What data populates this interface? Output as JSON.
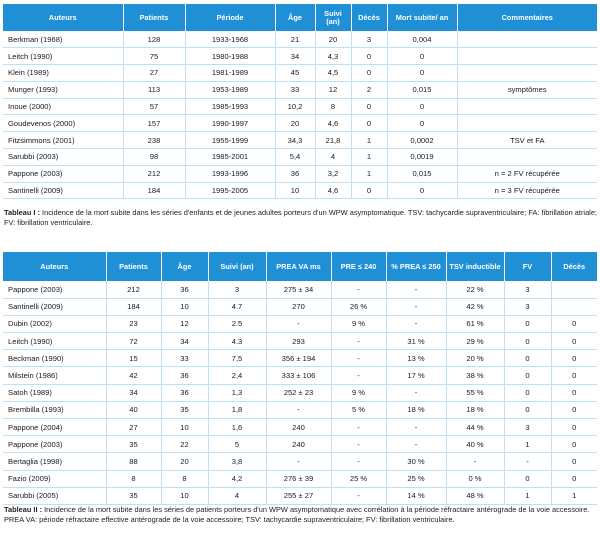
{
  "table1": {
    "headers": [
      "Auteurs",
      "Patients",
      "Période",
      "Âge",
      "Suivi (an)",
      "Décès",
      "Mort subite/ an",
      "Commentaires"
    ],
    "rows": [
      [
        "Berkman (1968)",
        "128",
        "1933-1968",
        "21",
        "20",
        "3",
        "0,004",
        ""
      ],
      [
        "Leitch (1990)",
        "75",
        "1980-1988",
        "34",
        "4,3",
        "0",
        "0",
        ""
      ],
      [
        "Klein (1989)",
        "27",
        "1981-1989",
        "45",
        "4,5",
        "0",
        "0",
        ""
      ],
      [
        "Munger (1993)",
        "113",
        "1953-1989",
        "33",
        "12",
        "2",
        "0,015",
        "symptômes"
      ],
      [
        "Inoue (2000)",
        "57",
        "1985-1993",
        "10,2",
        "8",
        "0",
        "0",
        ""
      ],
      [
        "Goudevenos (2000)",
        "157",
        "1990-1997",
        "20",
        "4,6",
        "0",
        "0",
        ""
      ],
      [
        "Fitzsimmons (2001)",
        "238",
        "1955-1999",
        "34,3",
        "21,8",
        "1",
        "0,0002",
        "TSV et FA"
      ],
      [
        "Sarubbi (2003)",
        "98",
        "1985-2001",
        "5,4",
        "4",
        "1",
        "0,0019",
        ""
      ],
      [
        "Pappone (2003)",
        "212",
        "1993-1996",
        "36",
        "3,2",
        "1",
        "0,015",
        "n = 2 FV récupérée"
      ],
      [
        "Santinelli (2009)",
        "184",
        "1995-2005",
        "10",
        "4,6",
        "0",
        "0",
        "n = 3 FV récupérée"
      ]
    ]
  },
  "caption1": {
    "label": "Tableau I :",
    "text": " Incidence de la mort subite dans les séries d'enfants et de jeunes adultes porteurs d'un WPW asymptomatique. TSV: tachycardie supraventriculaire; FA: fibrillation atriale; FV: fibrillation ventriculaire."
  },
  "table2": {
    "headers": [
      "Auteurs",
      "Patients",
      "Âge",
      "Suivi (an)",
      "PREA VA ms",
      "PRE ≤ 240",
      "% PREA ≤ 250",
      "TSV inductible",
      "FV",
      "Décès"
    ],
    "rows": [
      [
        "Pappone (2003)",
        "212",
        "36",
        "3",
        "275 ± 34",
        "-",
        "-",
        "22 %",
        "3",
        ""
      ],
      [
        "Santinelli (2009)",
        "184",
        "10",
        "4.7",
        "270",
        "26 %",
        "-",
        "42 %",
        "3",
        ""
      ],
      [
        "Dubin (2002)",
        "23",
        "12",
        "2.5",
        "-",
        "9 %",
        "-",
        "61 %",
        "0",
        "0"
      ],
      [
        "Leitch (1990)",
        "72",
        "34",
        "4.3",
        "293",
        "-",
        "31 %",
        "29 %",
        "0",
        "0"
      ],
      [
        "Beckman (1990)",
        "15",
        "33",
        "7,5",
        "356 ± 194",
        "-",
        "13 %",
        "20 %",
        "0",
        "0"
      ],
      [
        "Milstein (1986)",
        "42",
        "36",
        "2,4",
        "333 ± 106",
        "-",
        "17 %",
        "38 %",
        "0",
        "0"
      ],
      [
        "Satoh (1989)",
        "34",
        "36",
        "1,3",
        "252 ± 23",
        "9 %",
        "-",
        "55 %",
        "0",
        "0"
      ],
      [
        "Brembilla (1993)",
        "40",
        "35",
        "1,8",
        "-",
        "5 %",
        "18 %",
        "18 %",
        "0",
        "0"
      ],
      [
        "Pappone (2004)",
        "27",
        "10",
        "1,6",
        "240",
        "-",
        "-",
        "44 %",
        "3",
        "0"
      ],
      [
        "Pappone (2003)",
        "35",
        "22",
        "5",
        "240",
        "-",
        "-",
        "40 %",
        "1",
        "0"
      ],
      [
        "Bertaglia (1998)",
        "88",
        "20",
        "3,8",
        "-",
        "-",
        "30 %",
        "-",
        "-",
        "0"
      ],
      [
        "Fazio (2009)",
        "8",
        "8",
        "4,2",
        "276 ± 39",
        "25 %",
        "25 %",
        "0 %",
        "0",
        "0"
      ],
      [
        "Sarubbi (2005)",
        "35",
        "10",
        "4",
        "255 ± 27",
        "-",
        "14 %",
        "48 %",
        "1",
        "1"
      ]
    ]
  },
  "caption2": {
    "label": "Tableau II :",
    "text": " Incidence de la mort subite dans les séries de patients porteurs d'un WPW asymptomatique avec corrélation à la période réfractaire antérograde de la voie accessoire. PREA VA: période réfractaire effective antérograde de la voie accessoire; TSV: tachycardie supraventriculaire; FV: fibrillation ventriculaire."
  }
}
